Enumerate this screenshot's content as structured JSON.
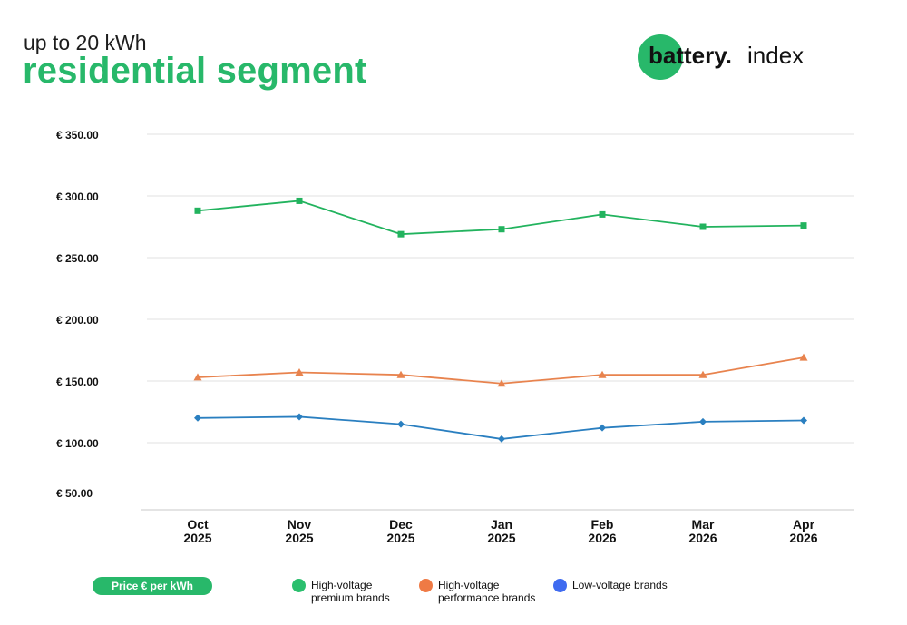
{
  "header": {
    "subtitle": "up to 20 kWh",
    "title": "residential segment"
  },
  "logo": {
    "brand": "battery.",
    "suffix": "index",
    "accent_color": "#28b86a"
  },
  "unit_badge": "Price € per kWh",
  "chart_data": {
    "type": "line",
    "categories": [
      [
        "Oct",
        "2025"
      ],
      [
        "Nov",
        "2025"
      ],
      [
        "Dec",
        "2025"
      ],
      [
        "Jan",
        "2025"
      ],
      [
        "Feb",
        "2026"
      ],
      [
        "Mar",
        "2026"
      ],
      [
        "Apr",
        "2026"
      ]
    ],
    "yticks": [
      {
        "value": 350,
        "label": "€ 350.00"
      },
      {
        "value": 300,
        "label": "€ 300.00"
      },
      {
        "value": 250,
        "label": "€ 250.00"
      },
      {
        "value": 200,
        "label": "€ 200.00"
      },
      {
        "value": 150,
        "label": "€ 150.00"
      },
      {
        "value": 100,
        "label": "€ 100.00"
      },
      {
        "value": 50,
        "label": "€ 50.00"
      }
    ],
    "grid": true,
    "legend_position": "bottom",
    "series": [
      {
        "name": "High-voltage premium brands",
        "legend_lines": [
          "High-voltage",
          "premium brands"
        ],
        "color": "#22b35e",
        "legend_color": "#2bbf6e",
        "marker": "square",
        "values": [
          288,
          296,
          269,
          273,
          285,
          275,
          276
        ]
      },
      {
        "name": "High-voltage performance brands",
        "legend_lines": [
          "High-voltage",
          "performance brands"
        ],
        "color": "#e8834e",
        "legend_color": "#ef7a45",
        "marker": "triangle",
        "values": [
          153,
          157,
          155,
          148,
          155,
          155,
          169
        ]
      },
      {
        "name": "Low-voltage brands",
        "legend_lines": [
          "Low-voltage brands"
        ],
        "color": "#2a7fc0",
        "legend_color": "#3f6bf0",
        "marker": "diamond",
        "values": [
          120,
          121,
          115,
          103,
          112,
          117,
          118
        ]
      }
    ]
  }
}
